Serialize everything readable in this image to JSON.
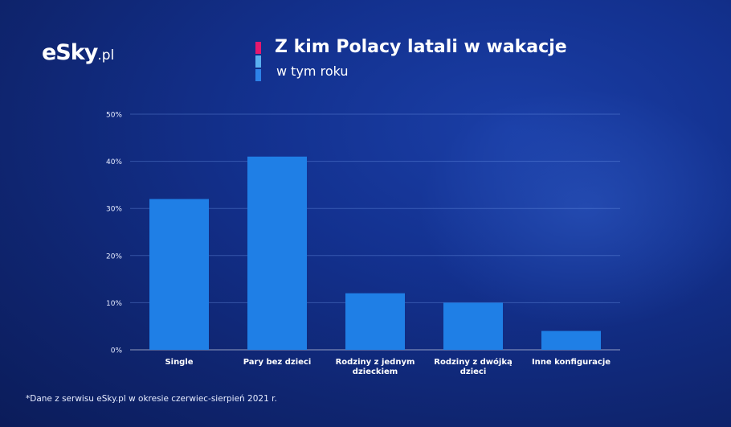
{
  "logo": {
    "text": "eSky",
    "suffix": ".pl"
  },
  "header": {
    "title": "Z kim Polacy latali w wakacje",
    "subtitle": "w tym roku",
    "accent_colors": [
      "#e5186d",
      "#5ab0f0",
      "#2d82e8"
    ]
  },
  "chart_data": {
    "type": "bar",
    "title": "Z kim Polacy latali w wakacje",
    "subtitle": "w tym roku",
    "categories": [
      "Single",
      "Pary bez dzieci",
      "Rodziny z jednym dzieckiem",
      "Rodziny z dwójką dzieci",
      "Inne konfiguracje"
    ],
    "category_lines": [
      [
        "Single"
      ],
      [
        "Pary bez dzieci"
      ],
      [
        "Rodziny z jednym",
        "dzieckiem"
      ],
      [
        "Rodziny z dwójką",
        "dzieci"
      ],
      [
        "Inne konfiguracje"
      ]
    ],
    "values": [
      32,
      41,
      12,
      10,
      4
    ],
    "y_ticks": [
      "0%",
      "10%",
      "20%",
      "30%",
      "40%",
      "50%"
    ],
    "ylim": [
      0,
      50
    ],
    "xlabel": "",
    "ylabel": "",
    "grid": true,
    "bar_color": "#1f7fe6"
  },
  "footnote": "*Dane z serwisu eSky.pl w okresie czerwiec-sierpień 2021 r."
}
